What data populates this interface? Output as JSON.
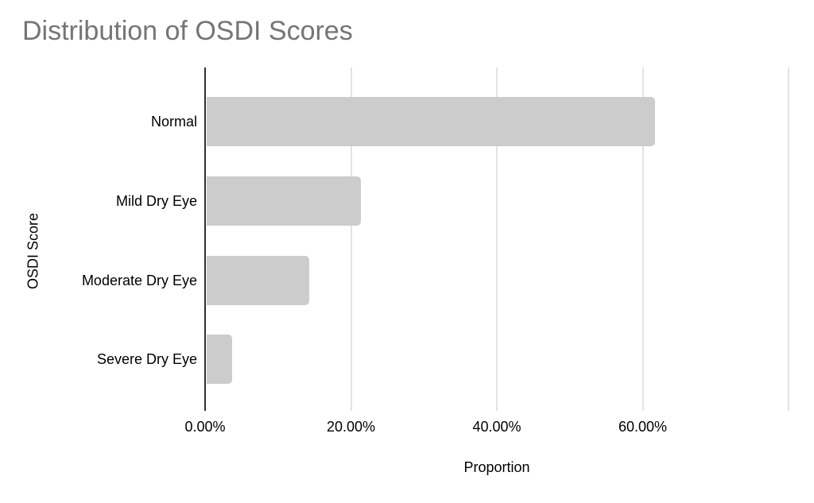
{
  "chart_data": {
    "type": "bar",
    "orientation": "horizontal",
    "title": "Distribution of OSDI Scores",
    "categories": [
      "Normal",
      "Mild Dry Eye",
      "Moderate Dry Eye",
      "Severe Dry Eye"
    ],
    "values": [
      61.5,
      21.1,
      14.1,
      3.5
    ],
    "value_format": "percent",
    "xlabel": "Proportion",
    "ylabel": "OSDI Score",
    "xlim": [
      0,
      80
    ],
    "xticks": [
      {
        "value": 0,
        "label": "0.00%"
      },
      {
        "value": 20,
        "label": "20.00%"
      },
      {
        "value": 40,
        "label": "40.00%"
      },
      {
        "value": 60,
        "label": "60.00%"
      },
      {
        "value": 80,
        "label": ""
      }
    ],
    "grid": true,
    "legend": false,
    "colors": {
      "bar": "#cccccc",
      "title": "#757575",
      "gridline": "#e3e3e3",
      "zero_axis_line": "#2f2f2f",
      "label": "#000000",
      "background": "#ffffff"
    }
  }
}
